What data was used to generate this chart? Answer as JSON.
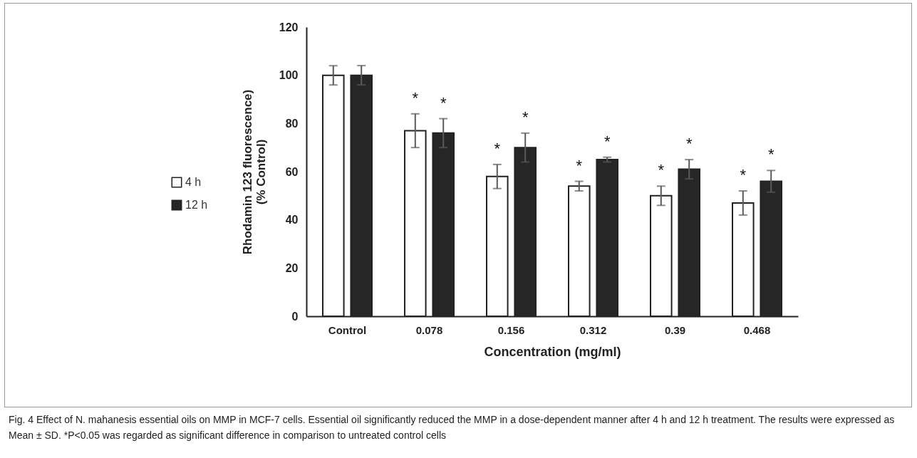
{
  "chart_data": {
    "type": "bar",
    "xlabel": "Concentration (mg/ml)",
    "ylabel": "Rhodamin  123 fluorescence) (% Control)",
    "categories": [
      "Control",
      "0.078",
      "0.156",
      "0.312",
      "0.39",
      "0.468"
    ],
    "series": [
      {
        "name": "4 h",
        "color": "#ffffff",
        "values": [
          100,
          77,
          58,
          54,
          50,
          47
        ],
        "errors": [
          4,
          7,
          5,
          2,
          4,
          5
        ]
      },
      {
        "name": "12 h",
        "color": "#262626",
        "values": [
          100,
          76,
          70,
          65,
          61,
          56
        ],
        "errors": [
          4,
          6,
          6,
          1,
          4,
          4.5
        ]
      }
    ],
    "ylim": [
      0,
      120
    ],
    "yticks": [
      0,
      20,
      40,
      60,
      80,
      100,
      120
    ],
    "grid": false,
    "legend": "left",
    "annotations": [
      {
        "text": "*",
        "x": "0.078",
        "y": 77
      },
      {
        "text": "*",
        "x": "0.078",
        "y": 76
      },
      {
        "text": "*",
        "x": "0.156",
        "y": 58
      },
      {
        "text": "*",
        "x": "0.156",
        "y": 70
      },
      {
        "text": "*",
        "x": "0.312",
        "y": 54
      },
      {
        "text": "*",
        "x": "0.312",
        "y": 65
      },
      {
        "text": "*",
        "x": "0.39",
        "y": 50
      },
      {
        "text": "*",
        "x": "0.39",
        "y": 61
      },
      {
        "text": "*",
        "x": "0.468",
        "y": 47
      },
      {
        "text": "*",
        "x": "0.468",
        "y": 56
      },
      "Fig. 4  Effect of N. mahanesis essential oils on MMP in MCF-7 cells. Essential oil significantly reduced the MMP in a dose-dependent manner after 4 h and 12 h treatment. The results were expressed as Mean ± SD. *P<0.05 was regarded as significant difference in comparison to untreated control cells"
    ]
  }
}
